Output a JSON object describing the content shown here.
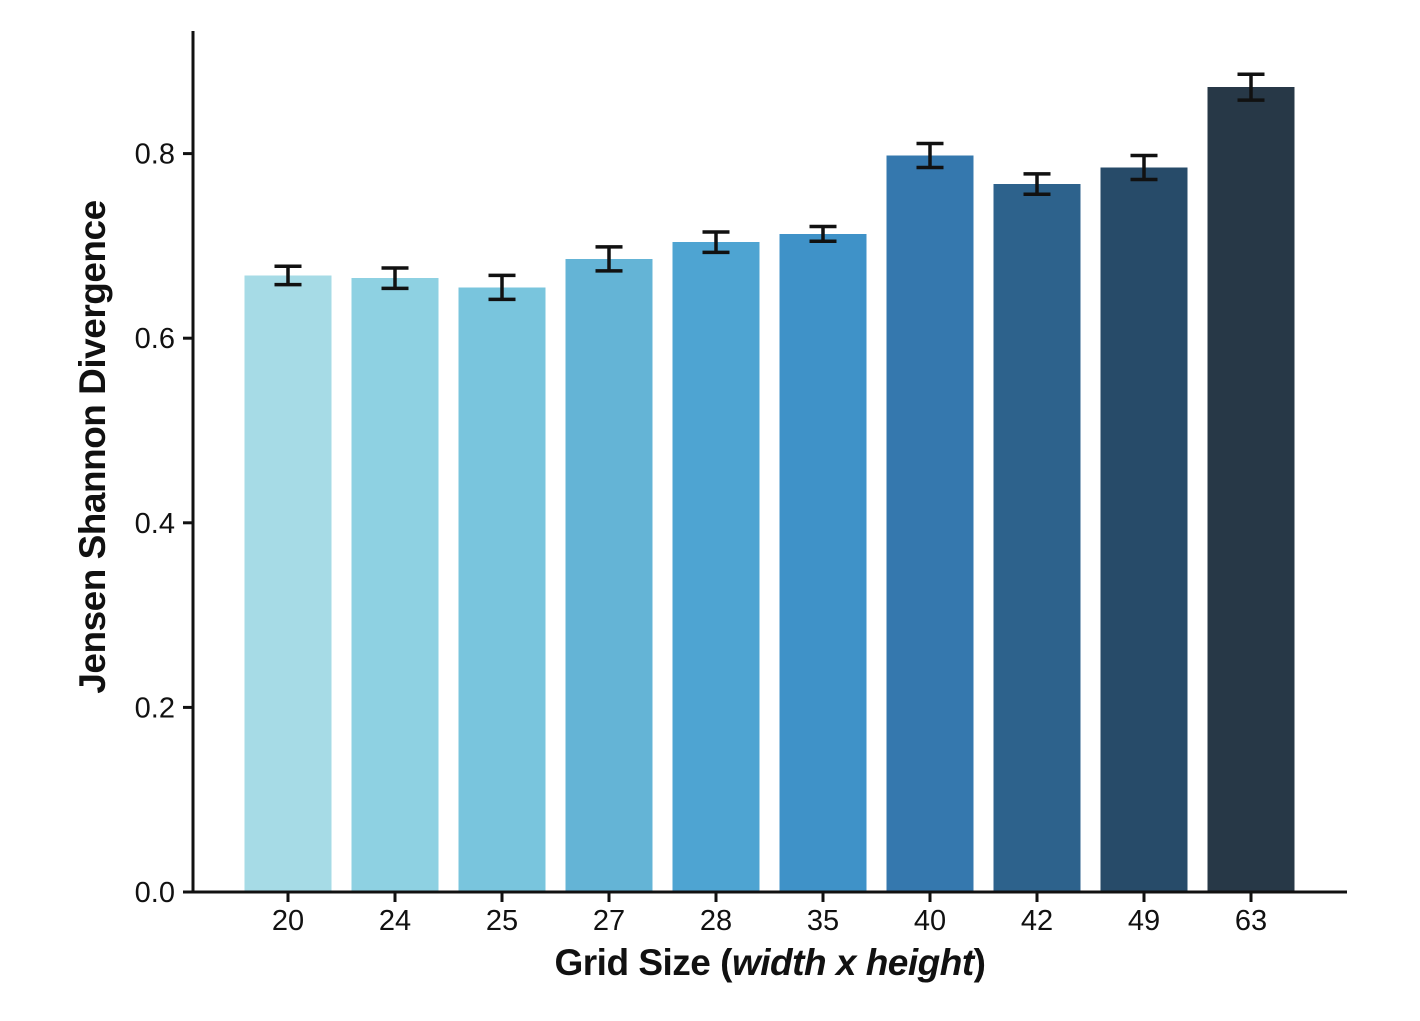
{
  "figure": {
    "background": "#ffffff",
    "text_color": "#111111"
  },
  "chart_data": {
    "type": "bar",
    "title": "",
    "xlabel": "Grid Size (width x height)",
    "xlabel_parts": {
      "prefix": "Grid Size (",
      "italic": "width x height",
      "suffix": ")"
    },
    "ylabel": "Jensen Shannon Divergence",
    "categories": [
      "20",
      "24",
      "25",
      "27",
      "28",
      "35",
      "40",
      "42",
      "49",
      "63"
    ],
    "values": [
      0.668,
      0.665,
      0.655,
      0.686,
      0.704,
      0.713,
      0.798,
      0.767,
      0.785,
      0.872
    ],
    "errors": [
      0.01,
      0.011,
      0.013,
      0.013,
      0.011,
      0.008,
      0.013,
      0.011,
      0.013,
      0.014
    ],
    "bar_colors": [
      "#a6dbe6",
      "#8ed1e2",
      "#79c5dd",
      "#64b4d6",
      "#4ea4d2",
      "#3f92c8",
      "#3578ae",
      "#2d628c",
      "#274b69",
      "#273847"
    ],
    "error_color": "#111111",
    "axis_color": "#111111",
    "ytick_labels": [
      "0.0",
      "0.2",
      "0.4",
      "0.6",
      "0.8"
    ],
    "ytick_values": [
      0.0,
      0.2,
      0.4,
      0.6,
      0.8
    ],
    "ylim": [
      0.0,
      0.93
    ],
    "grid": false,
    "legend": null
  }
}
